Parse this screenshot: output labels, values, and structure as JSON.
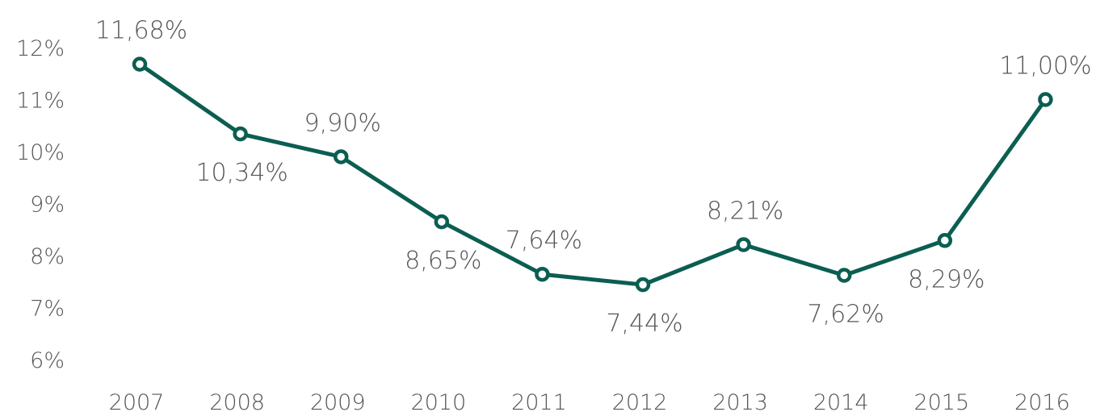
{
  "chart_data": {
    "type": "line",
    "title": "",
    "xlabel": "",
    "ylabel": "",
    "categories": [
      "2007",
      "2008",
      "2009",
      "2010",
      "2011",
      "2012",
      "2013",
      "2014",
      "2015",
      "2016"
    ],
    "series": [
      {
        "values": [
          11.68,
          10.34,
          9.9,
          8.65,
          7.64,
          7.44,
          8.21,
          7.62,
          8.29,
          11.0
        ],
        "data_labels": [
          "11,68%",
          "10,34%",
          "9,90%",
          "8,65%",
          "7,64%",
          "7,44%",
          "8,21%",
          "7,62%",
          "8,29%",
          "11,00%"
        ],
        "label_position": [
          "above",
          "below",
          "above",
          "below",
          "above",
          "below",
          "above",
          "below",
          "below",
          "above"
        ],
        "color": "#0b5e51"
      }
    ],
    "ylim": [
      6,
      12
    ],
    "yticks": [
      {
        "value": 12,
        "label": "12%"
      },
      {
        "value": 11,
        "label": "11%"
      },
      {
        "value": 10,
        "label": "10%"
      },
      {
        "value": 9,
        "label": "9%"
      },
      {
        "value": 8,
        "label": "8%"
      },
      {
        "value": 7,
        "label": "7%"
      },
      {
        "value": 6,
        "label": "6%"
      }
    ],
    "grid": false,
    "legend": "none"
  }
}
